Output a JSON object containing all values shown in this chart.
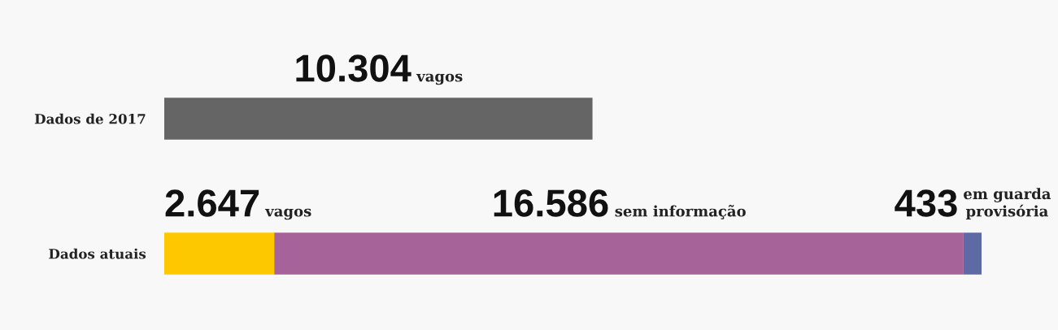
{
  "chart_data": {
    "type": "bar",
    "orientation": "horizontal",
    "stacked": true,
    "tick_labels": "y",
    "categories": [
      "Dados de 2017",
      "Dados atuais"
    ],
    "series": [
      {
        "name": "vagos",
        "color": "#656565",
        "values": [
          10304,
          null
        ],
        "value_labels": [
          "10.304",
          null
        ]
      },
      {
        "name": "vagos",
        "color": "#fdc800",
        "values": [
          null,
          2647
        ],
        "value_labels": [
          null,
          "2.647"
        ]
      },
      {
        "name": "sem informação",
        "color": "#a56399",
        "values": [
          null,
          16586
        ],
        "value_labels": [
          null,
          "16.586"
        ]
      },
      {
        "name": "em guarda\nprovisória",
        "color": "#5d6aa5",
        "values": [
          null,
          433
        ],
        "value_labels": [
          null,
          "433"
        ]
      }
    ]
  }
}
